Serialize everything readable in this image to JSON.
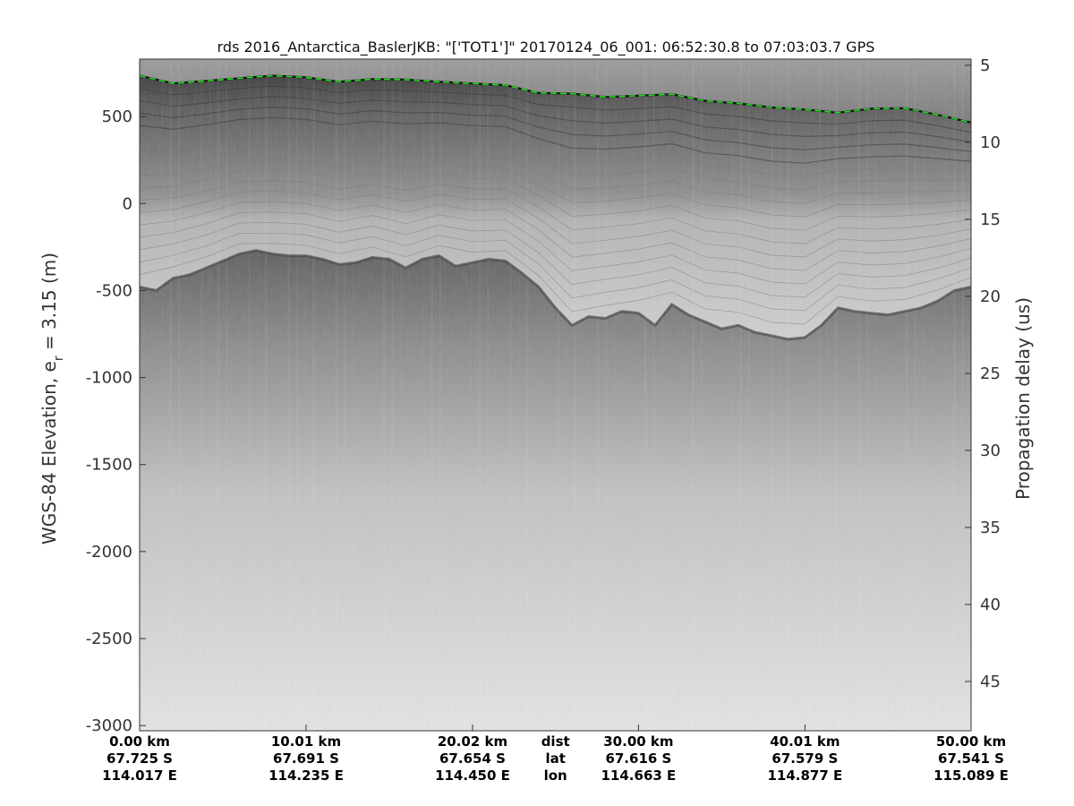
{
  "chart_data": {
    "type": "heatmap",
    "title": "rds 2016_Antarctica_BaslerJKB: \"['TOT1']\"  20170124_06_001: 06:52:30.8 to 07:03:03.7 GPS",
    "ylabel_left_main": "WGS-84 Elevation, e",
    "ylabel_left_sub": "r",
    "ylabel_left_tail": " = 3.15 (m)",
    "ylabel_right": "Propagation delay (us)",
    "left_axis": {
      "ylim": [
        -3030,
        830
      ],
      "ticks": [
        500,
        0,
        -500,
        -1000,
        -1500,
        -2000,
        -2500,
        -3000
      ],
      "tick_labels": [
        "500",
        "0",
        "-500",
        "-1000",
        "-1500",
        "-2000",
        "-2500",
        "-3000"
      ]
    },
    "right_axis": {
      "ylim": [
        4.6,
        48.2
      ],
      "ticks": [
        5,
        10,
        15,
        20,
        25,
        30,
        35,
        40,
        45
      ],
      "tick_labels": [
        "5",
        "10",
        "15",
        "20",
        "25",
        "30",
        "35",
        "40",
        "45"
      ]
    },
    "x_axis": {
      "xlim": [
        0,
        50
      ],
      "row_labels": [
        "dist",
        "lat",
        "lon"
      ],
      "ticks": [
        {
          "x": 0.0,
          "dist": "0.00 km",
          "lat": "67.725 S",
          "lon": "114.017 E"
        },
        {
          "x": 10.01,
          "dist": "10.01 km",
          "lat": "67.691 S",
          "lon": "114.235 E"
        },
        {
          "x": 20.02,
          "dist": "20.02 km",
          "lat": "67.654 S",
          "lon": "114.450 E"
        },
        {
          "x": 30.0,
          "dist": "30.00 km",
          "lat": "67.616 S",
          "lon": "114.663 E"
        },
        {
          "x": 40.01,
          "dist": "40.01 km",
          "lat": "67.579 S",
          "lon": "114.877 E"
        },
        {
          "x": 50.0,
          "dist": "50.00 km",
          "lat": "67.541 S",
          "lon": "115.089 E"
        }
      ]
    },
    "surface_pick": {
      "color": "#22dd22",
      "x": [
        0,
        2,
        4,
        6,
        8,
        10,
        12,
        14,
        16,
        18,
        20,
        22,
        24,
        26,
        28,
        30,
        32,
        34,
        36,
        38,
        40,
        42,
        44,
        46,
        48,
        50
      ],
      "y": [
        735,
        690,
        705,
        720,
        735,
        725,
        700,
        715,
        712,
        700,
        690,
        680,
        635,
        632,
        612,
        620,
        628,
        590,
        575,
        552,
        540,
        522,
        545,
        548,
        510,
        465
      ]
    },
    "bed_interface": {
      "x": [
        0,
        1,
        2,
        3,
        4,
        5,
        6,
        7,
        8,
        9,
        10,
        11,
        12,
        13,
        14,
        15,
        16,
        17,
        18,
        19,
        20,
        21,
        22,
        23,
        24,
        25,
        26,
        27,
        28,
        29,
        30,
        31,
        32,
        33,
        34,
        35,
        36,
        37,
        38,
        39,
        40,
        41,
        42,
        43,
        44,
        45,
        46,
        47,
        48,
        49,
        50
      ],
      "y": [
        -480,
        -500,
        -430,
        -410,
        -370,
        -330,
        -290,
        -270,
        -290,
        -300,
        -300,
        -320,
        -350,
        -340,
        -310,
        -320,
        -370,
        -320,
        -300,
        -360,
        -340,
        -320,
        -330,
        -400,
        -480,
        -600,
        -700,
        -650,
        -660,
        -620,
        -630,
        -700,
        -580,
        -640,
        -680,
        -720,
        -700,
        -740,
        -760,
        -780,
        -770,
        -700,
        -600,
        -620,
        -630,
        -640,
        -620,
        -600,
        -560,
        -500,
        -480
      ]
    },
    "colormap": "gray",
    "grid": false,
    "legend": "none"
  }
}
